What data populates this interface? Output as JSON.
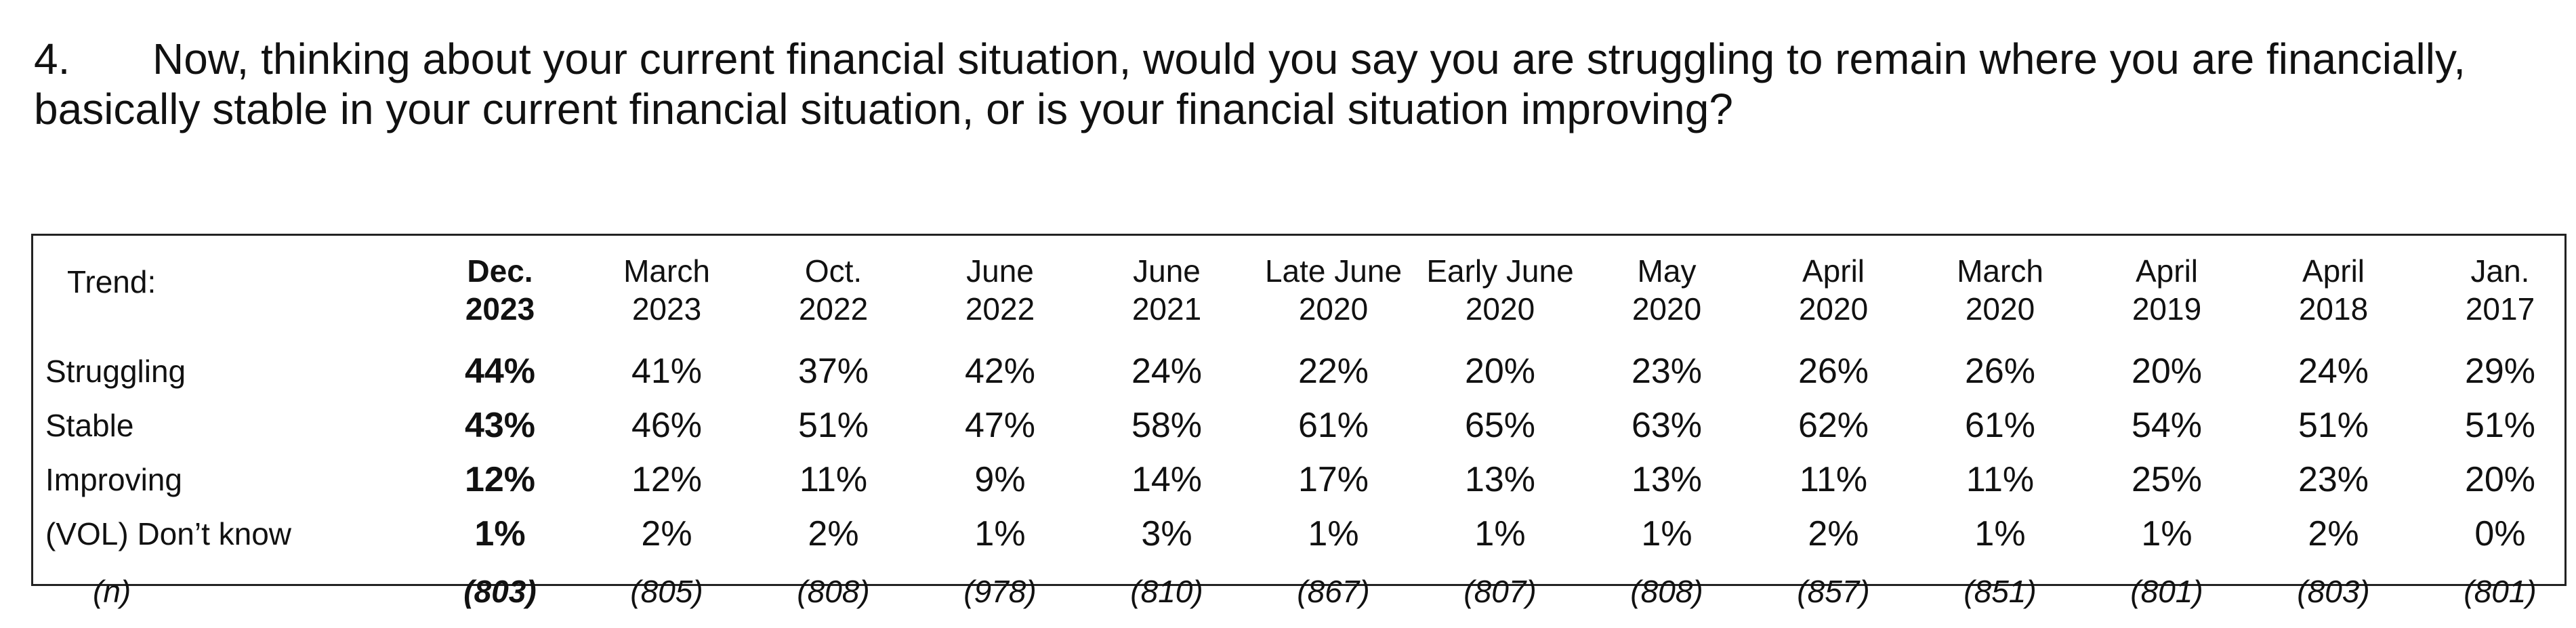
{
  "question": {
    "number": "4.",
    "text": "Now, thinking about your current financial situation, would you say you are struggling to remain where you are financially, basically stable in your current financial situation, or is your financial situation improving?"
  },
  "table": {
    "corner_label": "Trend:",
    "columns": [
      {
        "line1": "Dec.",
        "line2": "2023"
      },
      {
        "line1": "March",
        "line2": "2023"
      },
      {
        "line1": "Oct.",
        "line2": "2022"
      },
      {
        "line1": "June",
        "line2": "2022"
      },
      {
        "line1": "June",
        "line2": "2021"
      },
      {
        "line1": "Late June",
        "line2": "2020"
      },
      {
        "line1": "Early June",
        "line2": "2020"
      },
      {
        "line1": "May",
        "line2": "2020"
      },
      {
        "line1": "April",
        "line2": "2020"
      },
      {
        "line1": "March",
        "line2": "2020"
      },
      {
        "line1": "April",
        "line2": "2019"
      },
      {
        "line1": "April",
        "line2": "2018"
      },
      {
        "line1": "Jan.",
        "line2": "2017"
      }
    ],
    "rows": [
      {
        "label": "Struggling",
        "values": [
          "44%",
          "41%",
          "37%",
          "42%",
          "24%",
          "22%",
          "20%",
          "23%",
          "26%",
          "26%",
          "20%",
          "24%",
          "29%"
        ]
      },
      {
        "label": "Stable",
        "values": [
          "43%",
          "46%",
          "51%",
          "47%",
          "58%",
          "61%",
          "65%",
          "63%",
          "62%",
          "61%",
          "54%",
          "51%",
          "51%"
        ]
      },
      {
        "label": "Improving",
        "values": [
          "12%",
          "12%",
          "11%",
          "9%",
          "14%",
          "17%",
          "13%",
          "13%",
          "11%",
          "11%",
          "25%",
          "23%",
          "20%"
        ]
      },
      {
        "label": "(VOL) Don’t know",
        "values": [
          "1%",
          "2%",
          "2%",
          "1%",
          "3%",
          "1%",
          "1%",
          "1%",
          "2%",
          "1%",
          "1%",
          "2%",
          "0%"
        ]
      }
    ],
    "n_row": {
      "label": "(n)",
      "values": [
        "(803)",
        "(805)",
        "(808)",
        "(978)",
        "(810)",
        "(867)",
        "(807)",
        "(808)",
        "(857)",
        "(851)",
        "(801)",
        "(803)",
        "(801)"
      ]
    }
  }
}
